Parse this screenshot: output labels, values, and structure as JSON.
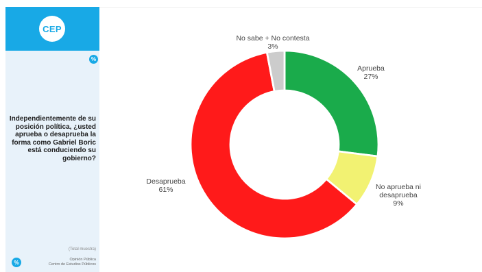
{
  "sidebar": {
    "logo": "CEP",
    "badge_top": "%",
    "question": "Independientemente de su posición política, ¿usted aprueba o desaprueba la forma como Gabriel Boric está conduciendo su gobierno?",
    "sample": "(Total muestra)",
    "badge_bottom": "%",
    "footer_line1": "Opinión Pública",
    "footer_line2": "Centro de Estudios Públicos",
    "accent_color": "#18a9e6",
    "background_color": "#e8f2fa"
  },
  "chart_data": {
    "type": "pie",
    "donut": true,
    "categories": [
      "Aprueba",
      "No aprueba ni desaprueba",
      "Desaprueba",
      "No sabe + No contesta"
    ],
    "values": [
      27,
      9,
      61,
      3
    ],
    "value_labels": [
      "27%",
      "9%",
      "61%",
      "3%"
    ],
    "label_lines": [
      [
        "Aprueba",
        "27%"
      ],
      [
        "No aprueba ni",
        "desaprueba",
        "9%"
      ],
      [
        "Desaprueba",
        "61%"
      ],
      [
        "No sabe + No contesta",
        "3%"
      ]
    ],
    "colors": [
      "#1aab4b",
      "#f2f272",
      "#ff1a1a",
      "#cccccc"
    ],
    "start": "top",
    "direction": "clockwise"
  }
}
